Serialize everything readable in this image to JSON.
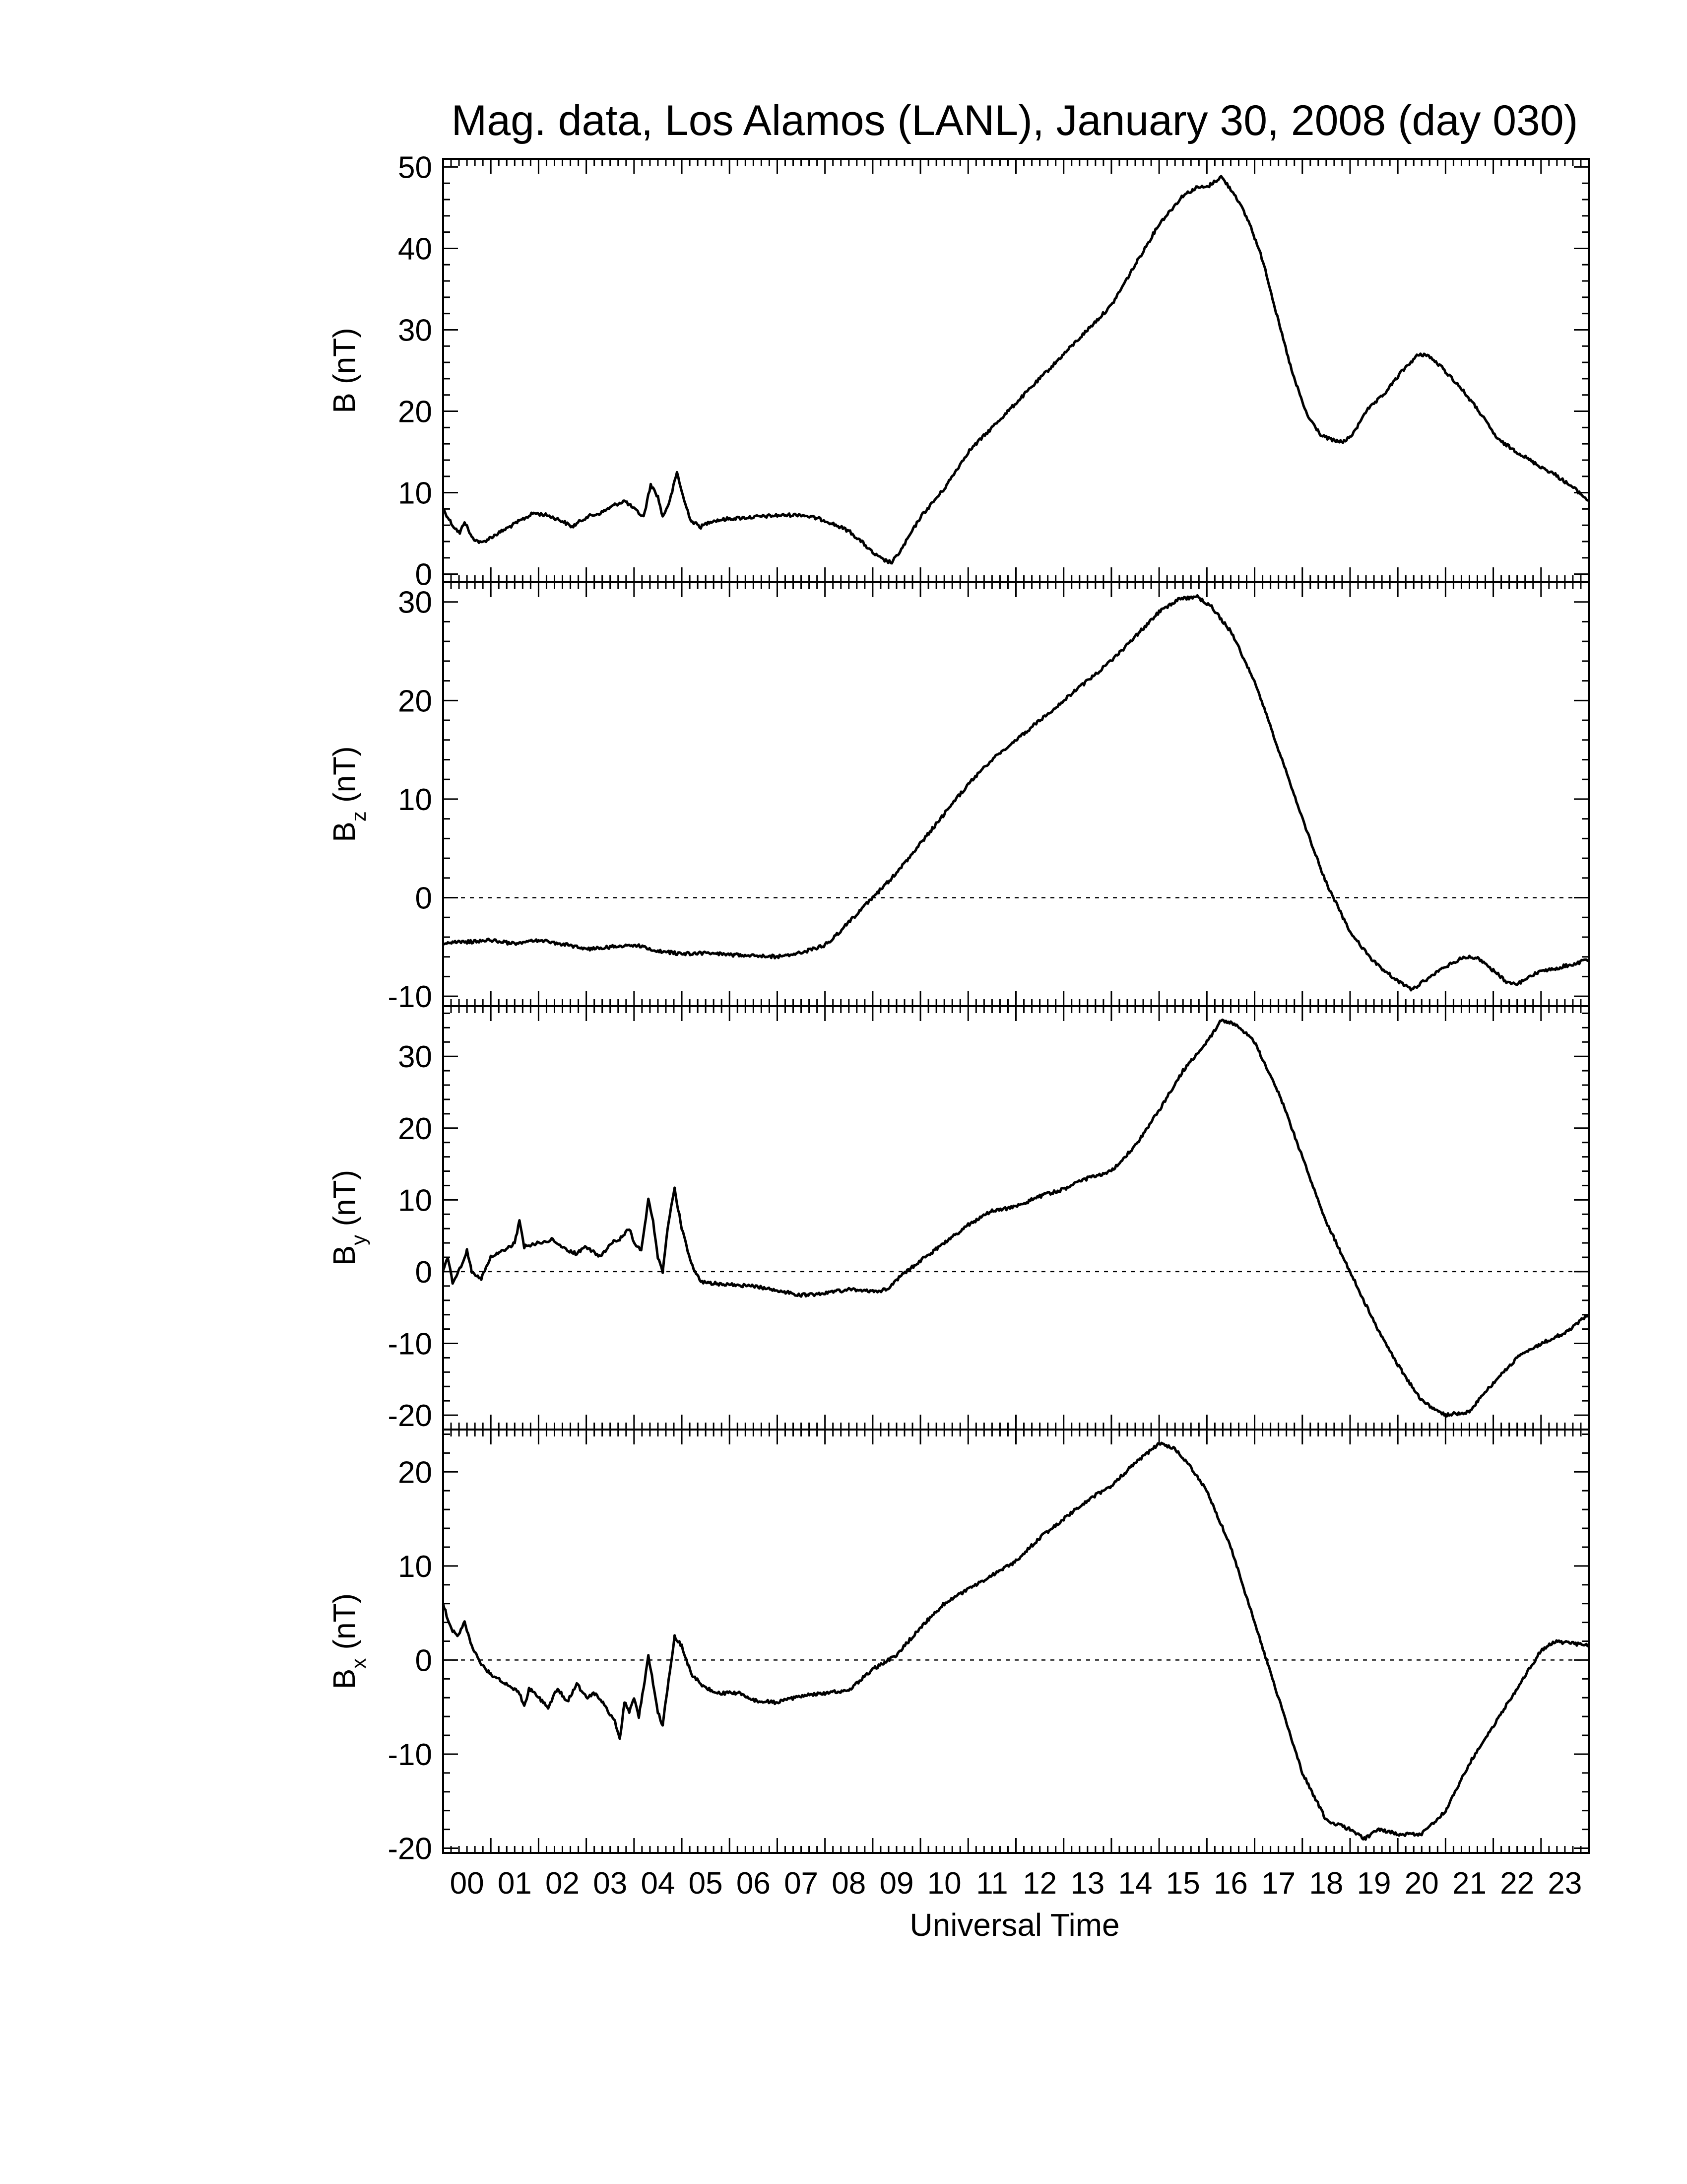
{
  "title": "Mag. data, Los Alamos (LANL), January 30, 2008 (day 030)",
  "xlabel": "Universal Time",
  "chart_data": {
    "type": "line",
    "title": "Mag. data, Los Alamos (LANL), January 30, 2008 (day 030)",
    "xlabel": "Universal Time",
    "x_tick_labels": [
      "00",
      "01",
      "02",
      "03",
      "04",
      "05",
      "06",
      "07",
      "08",
      "09",
      "10",
      "11",
      "12",
      "13",
      "14",
      "15",
      "16",
      "17",
      "18",
      "19",
      "20",
      "21",
      "22",
      "23"
    ],
    "xlim": [
      0,
      24
    ],
    "x_unit": "hours UT",
    "panels": [
      {
        "ylabel_main": "B",
        "ylabel_sub": "",
        "ylabel_unit": "(nT)",
        "ylim": [
          -1,
          51
        ],
        "yticks": [
          0,
          10,
          20,
          30,
          40,
          50
        ],
        "zero_line": false,
        "points": [
          [
            0,
            8
          ],
          [
            0.2,
            6
          ],
          [
            0.35,
            5
          ],
          [
            0.45,
            6.5
          ],
          [
            0.6,
            4.5
          ],
          [
            0.8,
            3.8
          ],
          [
            1.0,
            4.5
          ],
          [
            1.3,
            5.5
          ],
          [
            1.6,
            6.5
          ],
          [
            1.9,
            7.5
          ],
          [
            2.2,
            7.2
          ],
          [
            2.5,
            6.5
          ],
          [
            2.7,
            5.8
          ],
          [
            3.0,
            7
          ],
          [
            3.3,
            7.5
          ],
          [
            3.6,
            8.5
          ],
          [
            3.8,
            9
          ],
          [
            4.0,
            8
          ],
          [
            4.2,
            7
          ],
          [
            4.35,
            11
          ],
          [
            4.5,
            9.5
          ],
          [
            4.6,
            7
          ],
          [
            4.75,
            9
          ],
          [
            4.9,
            12.5
          ],
          [
            5.05,
            9
          ],
          [
            5.2,
            6.5
          ],
          [
            5.4,
            5.8
          ],
          [
            5.6,
            6.5
          ],
          [
            6.0,
            6.8
          ],
          [
            6.5,
            7
          ],
          [
            7.0,
            7.2
          ],
          [
            7.5,
            7.3
          ],
          [
            8.0,
            6.6
          ],
          [
            8.5,
            5.3
          ],
          [
            8.8,
            3.8
          ],
          [
            9.0,
            2.6
          ],
          [
            9.2,
            1.8
          ],
          [
            9.4,
            1.4
          ],
          [
            9.6,
            3
          ],
          [
            9.8,
            5
          ],
          [
            10.0,
            7
          ],
          [
            10.5,
            10.5
          ],
          [
            11.0,
            15
          ],
          [
            11.5,
            18
          ],
          [
            12.0,
            21
          ],
          [
            12.5,
            24
          ],
          [
            13.0,
            27
          ],
          [
            13.5,
            30
          ],
          [
            14.0,
            33
          ],
          [
            14.5,
            38
          ],
          [
            15.0,
            43
          ],
          [
            15.5,
            46.5
          ],
          [
            15.8,
            47.5
          ],
          [
            16.0,
            47.5
          ],
          [
            16.3,
            48.8
          ],
          [
            16.6,
            46.5
          ],
          [
            16.9,
            43
          ],
          [
            17.2,
            38
          ],
          [
            17.5,
            31
          ],
          [
            17.8,
            24.5
          ],
          [
            18.1,
            19.5
          ],
          [
            18.4,
            17
          ],
          [
            18.7,
            16.3
          ],
          [
            18.9,
            16.3
          ],
          [
            19.1,
            17.5
          ],
          [
            19.3,
            19.8
          ],
          [
            19.7,
            22
          ],
          [
            20.1,
            25
          ],
          [
            20.4,
            26.8
          ],
          [
            20.6,
            27
          ],
          [
            20.9,
            25.5
          ],
          [
            21.3,
            23
          ],
          [
            21.7,
            20
          ],
          [
            22.1,
            16.5
          ],
          [
            22.5,
            15
          ],
          [
            22.9,
            13.5
          ],
          [
            23.3,
            12.2
          ],
          [
            23.7,
            10.5
          ],
          [
            24.0,
            9
          ]
        ]
      },
      {
        "ylabel_main": "B",
        "ylabel_sub": "z",
        "ylabel_unit": "(nT)",
        "ylim": [
          -11,
          32
        ],
        "yticks": [
          -10,
          0,
          10,
          20,
          30
        ],
        "zero_line": true,
        "points": [
          [
            0,
            -4.6
          ],
          [
            0.5,
            -4.5
          ],
          [
            1.0,
            -4.3
          ],
          [
            1.5,
            -4.7
          ],
          [
            2.0,
            -4.3
          ],
          [
            2.5,
            -4.7
          ],
          [
            3.0,
            -5.2
          ],
          [
            3.5,
            -5.0
          ],
          [
            4.0,
            -4.8
          ],
          [
            4.5,
            -5.4
          ],
          [
            5.0,
            -5.7
          ],
          [
            5.5,
            -5.6
          ],
          [
            6.0,
            -5.8
          ],
          [
            6.5,
            -5.8
          ],
          [
            7.0,
            -6.0
          ],
          [
            7.5,
            -5.6
          ],
          [
            8.0,
            -4.8
          ],
          [
            8.3,
            -3.5
          ],
          [
            8.6,
            -2.0
          ],
          [
            9.0,
            0
          ],
          [
            9.5,
            2.5
          ],
          [
            10.0,
            5.5
          ],
          [
            10.5,
            8.5
          ],
          [
            11.0,
            11.5
          ],
          [
            11.5,
            14
          ],
          [
            12.0,
            16
          ],
          [
            12.5,
            18
          ],
          [
            13.0,
            20
          ],
          [
            13.5,
            22
          ],
          [
            14.0,
            24
          ],
          [
            14.5,
            26.5
          ],
          [
            15.0,
            29
          ],
          [
            15.4,
            30.3
          ],
          [
            15.8,
            30.5
          ],
          [
            16.1,
            29.5
          ],
          [
            16.5,
            27
          ],
          [
            17.0,
            22
          ],
          [
            17.5,
            15
          ],
          [
            18.0,
            8
          ],
          [
            18.5,
            1.5
          ],
          [
            19.0,
            -3.5
          ],
          [
            19.5,
            -6.5
          ],
          [
            20.0,
            -8.5
          ],
          [
            20.3,
            -9.3
          ],
          [
            20.6,
            -8.3
          ],
          [
            21.0,
            -7
          ],
          [
            21.4,
            -6
          ],
          [
            21.7,
            -6.2
          ],
          [
            22.0,
            -7.4
          ],
          [
            22.3,
            -8.6
          ],
          [
            22.5,
            -8.8
          ],
          [
            22.8,
            -7.8
          ],
          [
            23.2,
            -7.3
          ],
          [
            23.6,
            -6.8
          ],
          [
            24.0,
            -6.3
          ]
        ]
      },
      {
        "ylabel_main": "B",
        "ylabel_sub": "y",
        "ylabel_unit": "(nT)",
        "ylim": [
          -22,
          37
        ],
        "yticks": [
          -20,
          -10,
          0,
          10,
          20,
          30
        ],
        "zero_line": true,
        "points": [
          [
            0,
            0
          ],
          [
            0.1,
            2
          ],
          [
            0.2,
            -1.5
          ],
          [
            0.4,
            1
          ],
          [
            0.5,
            3
          ],
          [
            0.6,
            0
          ],
          [
            0.8,
            -1
          ],
          [
            1.0,
            2
          ],
          [
            1.3,
            3
          ],
          [
            1.5,
            4
          ],
          [
            1.6,
            7
          ],
          [
            1.7,
            3.5
          ],
          [
            2.0,
            4
          ],
          [
            2.3,
            4.5
          ],
          [
            2.6,
            3
          ],
          [
            2.8,
            2.5
          ],
          [
            3.0,
            3.5
          ],
          [
            3.3,
            2
          ],
          [
            3.5,
            4
          ],
          [
            3.7,
            4.5
          ],
          [
            3.9,
            6
          ],
          [
            4.0,
            4
          ],
          [
            4.15,
            3
          ],
          [
            4.3,
            10
          ],
          [
            4.4,
            7
          ],
          [
            4.5,
            2
          ],
          [
            4.6,
            0
          ],
          [
            4.7,
            6
          ],
          [
            4.85,
            11.5
          ],
          [
            5.0,
            6
          ],
          [
            5.2,
            1
          ],
          [
            5.4,
            -1.5
          ],
          [
            6.0,
            -1.8
          ],
          [
            6.5,
            -2.0
          ],
          [
            7.0,
            -2.6
          ],
          [
            7.5,
            -3.3
          ],
          [
            8.0,
            -3
          ],
          [
            8.5,
            -2.5
          ],
          [
            9.0,
            -2.8
          ],
          [
            9.3,
            -2.5
          ],
          [
            9.6,
            -0.5
          ],
          [
            10.0,
            1.5
          ],
          [
            10.5,
            4
          ],
          [
            11.0,
            6.5
          ],
          [
            11.5,
            8.5
          ],
          [
            12.0,
            9
          ],
          [
            12.5,
            10.5
          ],
          [
            13.0,
            11.5
          ],
          [
            13.5,
            13
          ],
          [
            14.0,
            14
          ],
          [
            14.5,
            17.5
          ],
          [
            15.0,
            22.5
          ],
          [
            15.5,
            28
          ],
          [
            16.0,
            32
          ],
          [
            16.3,
            35
          ],
          [
            16.6,
            34.5
          ],
          [
            17.0,
            32
          ],
          [
            17.5,
            25
          ],
          [
            18.0,
            16
          ],
          [
            18.5,
            7
          ],
          [
            19.0,
            0
          ],
          [
            19.5,
            -7
          ],
          [
            20.0,
            -13
          ],
          [
            20.5,
            -18
          ],
          [
            21.0,
            -20
          ],
          [
            21.5,
            -19.5
          ],
          [
            22.0,
            -15.5
          ],
          [
            22.5,
            -12
          ],
          [
            23.0,
            -10
          ],
          [
            23.5,
            -8.5
          ],
          [
            24.0,
            -6
          ]
        ]
      },
      {
        "ylabel_main": "B",
        "ylabel_sub": "x",
        "ylabel_unit": "(nT)",
        "ylim": [
          -20.5,
          24.5
        ],
        "yticks": [
          -20,
          -10,
          0,
          10,
          20
        ],
        "zero_line": true,
        "points": [
          [
            0,
            6
          ],
          [
            0.15,
            3.5
          ],
          [
            0.3,
            2.5
          ],
          [
            0.45,
            4
          ],
          [
            0.6,
            1.5
          ],
          [
            0.8,
            -0.5
          ],
          [
            1.0,
            -1.5
          ],
          [
            1.3,
            -2.5
          ],
          [
            1.6,
            -3.5
          ],
          [
            1.7,
            -5
          ],
          [
            1.8,
            -3
          ],
          [
            2.0,
            -4
          ],
          [
            2.2,
            -5
          ],
          [
            2.4,
            -3
          ],
          [
            2.6,
            -4.5
          ],
          [
            2.8,
            -2.5
          ],
          [
            3.0,
            -4
          ],
          [
            3.2,
            -3.5
          ],
          [
            3.4,
            -5
          ],
          [
            3.6,
            -6.5
          ],
          [
            3.7,
            -8.5
          ],
          [
            3.8,
            -4.5
          ],
          [
            3.9,
            -5.5
          ],
          [
            4.0,
            -4
          ],
          [
            4.1,
            -6
          ],
          [
            4.2,
            -3
          ],
          [
            4.3,
            0.5
          ],
          [
            4.4,
            -2.5
          ],
          [
            4.5,
            -5.5
          ],
          [
            4.6,
            -7
          ],
          [
            4.7,
            -3
          ],
          [
            4.85,
            2.5
          ],
          [
            5.0,
            1.5
          ],
          [
            5.2,
            -1.5
          ],
          [
            5.5,
            -3
          ],
          [
            5.8,
            -3.5
          ],
          [
            6.2,
            -3.5
          ],
          [
            6.5,
            -4.3
          ],
          [
            7.0,
            -4.5
          ],
          [
            7.5,
            -3.8
          ],
          [
            8.0,
            -3.5
          ],
          [
            8.5,
            -3.2
          ],
          [
            9.0,
            -1
          ],
          [
            9.5,
            0.5
          ],
          [
            10.0,
            3.5
          ],
          [
            10.5,
            6
          ],
          [
            11.0,
            7.5
          ],
          [
            11.5,
            9
          ],
          [
            12.0,
            10.5
          ],
          [
            12.5,
            13
          ],
          [
            13.0,
            15
          ],
          [
            13.5,
            17
          ],
          [
            14.0,
            18.5
          ],
          [
            14.5,
            21
          ],
          [
            15.0,
            23
          ],
          [
            15.3,
            22.5
          ],
          [
            15.6,
            21
          ],
          [
            16.0,
            18
          ],
          [
            16.5,
            12
          ],
          [
            17.0,
            4
          ],
          [
            17.5,
            -4
          ],
          [
            18.0,
            -12
          ],
          [
            18.5,
            -17
          ],
          [
            19.0,
            -18
          ],
          [
            19.3,
            -19
          ],
          [
            19.6,
            -18
          ],
          [
            20.0,
            -18.5
          ],
          [
            20.5,
            -18.5
          ],
          [
            21.0,
            -16
          ],
          [
            21.5,
            -11
          ],
          [
            22.0,
            -7
          ],
          [
            22.5,
            -3
          ],
          [
            23.0,
            1
          ],
          [
            23.3,
            2
          ],
          [
            23.6,
            1.8
          ],
          [
            24.0,
            1.5
          ]
        ]
      }
    ]
  }
}
